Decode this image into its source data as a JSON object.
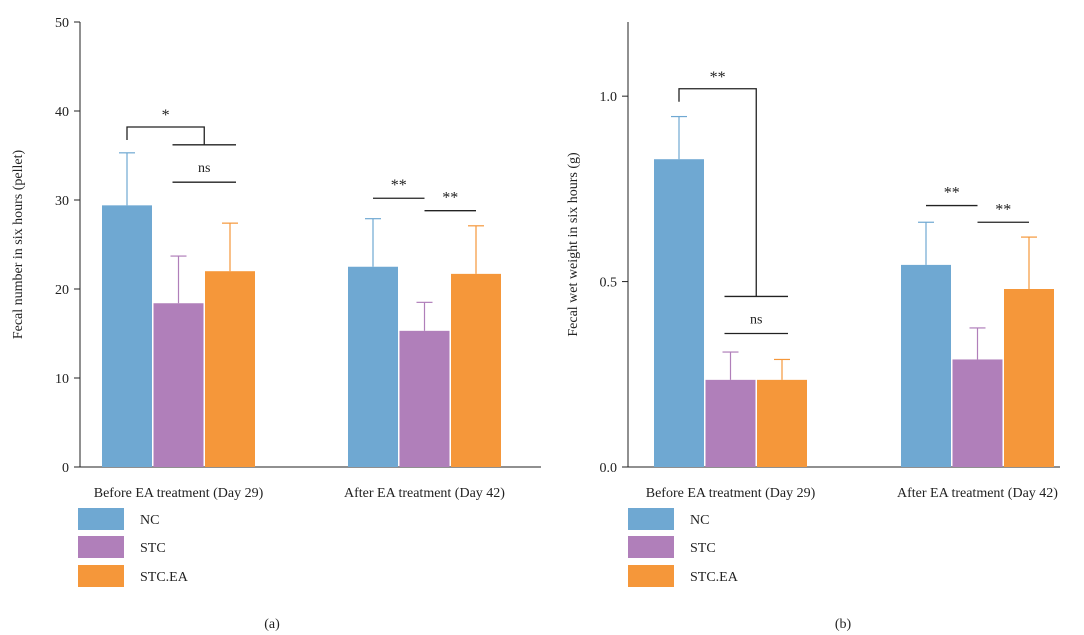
{
  "colors": {
    "NC": "#6fa8d2",
    "STC": "#b07fba",
    "STC.EA": "#f5973a"
  },
  "chart_data": [
    {
      "panel": "(a)",
      "type": "bar",
      "ylabel": "Fecal number in six hours (pellet)",
      "ylim": [
        0,
        50
      ],
      "yticks": [
        0,
        10,
        20,
        30,
        40,
        50
      ],
      "categories": [
        "Before EA treatment (Day 29)",
        "After EA treatment (Day 42)"
      ],
      "series": [
        {
          "name": "NC",
          "values": [
            29.4,
            22.5
          ],
          "errors": [
            5.9,
            5.4
          ]
        },
        {
          "name": "STC",
          "values": [
            18.4,
            15.3
          ],
          "errors": [
            5.3,
            3.2
          ]
        },
        {
          "name": "STC.EA",
          "values": [
            22.0,
            21.7
          ],
          "errors": [
            5.4,
            5.4
          ]
        }
      ],
      "legend": {
        "position": "bottom-left",
        "entries": [
          "NC",
          "STC",
          "STC.EA"
        ]
      },
      "annotations": [
        {
          "type": "nested",
          "label": "*",
          "category": 0,
          "from": 0,
          "subgroup": [
            1,
            2
          ],
          "level": 38.2,
          "drop": 36.2,
          "inner_label": "ns",
          "inner_level": 32.0
        },
        {
          "type": "pair",
          "label": "**",
          "category": 1,
          "from": 0,
          "to": 1,
          "level": 30.2
        },
        {
          "type": "pair",
          "label": "**",
          "category": 1,
          "from": 1,
          "to": 2,
          "level": 28.8
        }
      ]
    },
    {
      "panel": "(b)",
      "type": "bar",
      "ylabel": "Fecal wet weight in six hours (g)",
      "ylim": [
        0,
        1.2
      ],
      "yticks": [
        0.0,
        0.5,
        1.0
      ],
      "ytick_labels": [
        "0.0",
        "0.5",
        "1.0"
      ],
      "categories": [
        "Before EA treatment (Day 29)",
        "After EA treatment (Day 42)"
      ],
      "series": [
        {
          "name": "NC",
          "values": [
            0.83,
            0.545
          ],
          "errors": [
            0.115,
            0.115
          ]
        },
        {
          "name": "STC",
          "values": [
            0.235,
            0.29
          ],
          "errors": [
            0.075,
            0.085
          ]
        },
        {
          "name": "STC.EA",
          "values": [
            0.235,
            0.48
          ],
          "errors": [
            0.055,
            0.14
          ]
        }
      ],
      "legend": {
        "position": "bottom-left",
        "entries": [
          "NC",
          "STC",
          "STC.EA"
        ]
      },
      "annotations": [
        {
          "type": "nested",
          "label": "**",
          "category": 0,
          "from": 0,
          "subgroup": [
            1,
            2
          ],
          "level": 1.02,
          "drop": 0.46,
          "inner_label": "ns",
          "inner_level": 0.36
        },
        {
          "type": "pair",
          "label": "**",
          "category": 1,
          "from": 0,
          "to": 1,
          "level": 0.705
        },
        {
          "type": "pair",
          "label": "**",
          "category": 1,
          "from": 1,
          "to": 2,
          "level": 0.66
        }
      ]
    }
  ]
}
